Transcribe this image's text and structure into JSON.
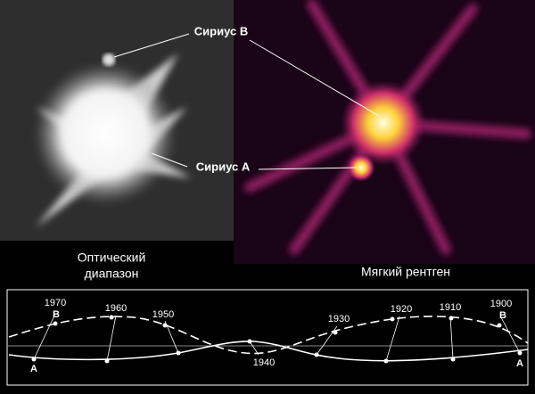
{
  "optical": {
    "caption": [
      "Оптический",
      "диапазон"
    ]
  },
  "xray": {
    "caption": "Мягкий рентген"
  },
  "labels": {
    "sirius_b": "Сириус B",
    "sirius_a": "Сириус A"
  },
  "orbit": {
    "years": [
      "1970",
      "1960",
      "1950",
      "1940",
      "1930",
      "1920",
      "1910",
      "1900"
    ],
    "b": "B",
    "a": "A"
  }
}
